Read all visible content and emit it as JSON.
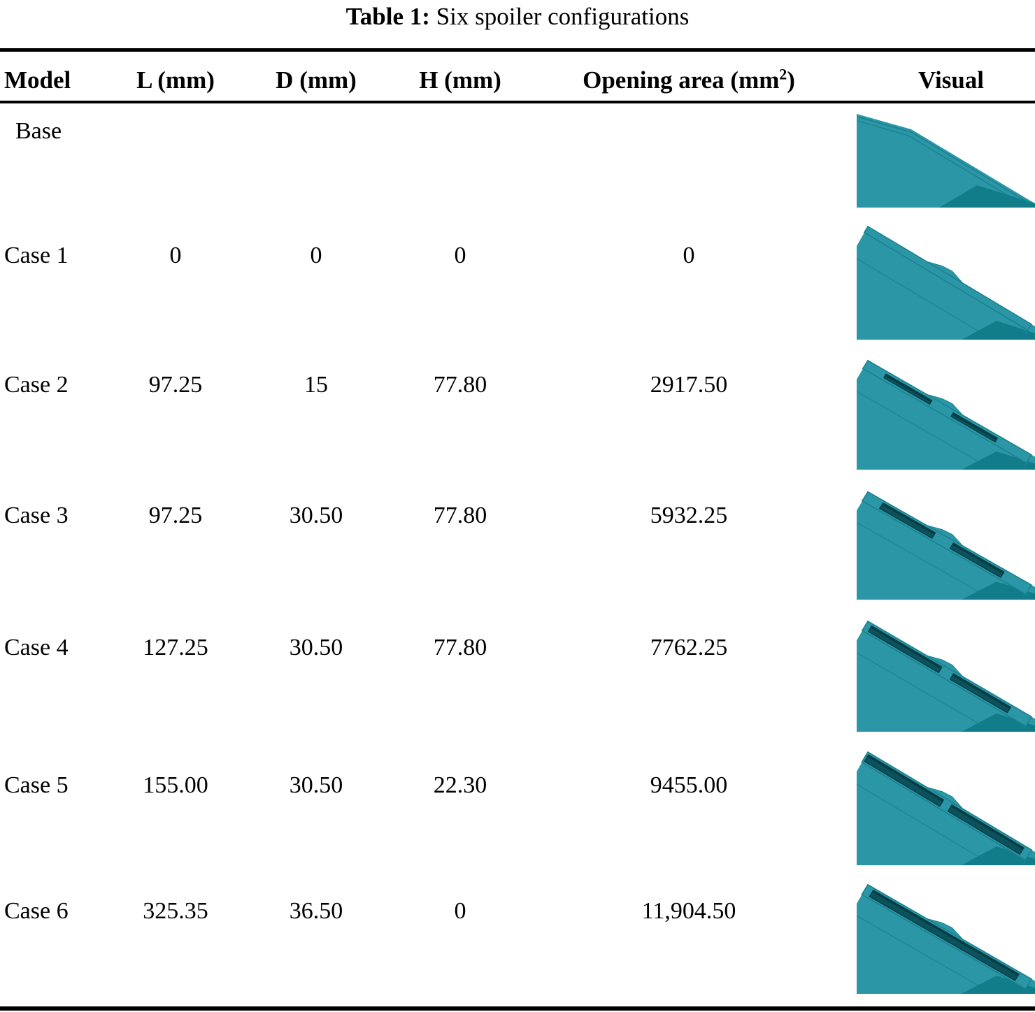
{
  "title": {
    "label": "Table 1:",
    "caption": "Six spoiler configurations"
  },
  "header": {
    "model": "Model",
    "l": "L (mm)",
    "d": "D (mm)",
    "h": "H (mm)",
    "opening_pre": "Opening area (mm",
    "opening_sup": "2",
    "opening_post": ")",
    "visual": "Visual"
  },
  "rows": [
    {
      "model": "Base",
      "l": "",
      "d": "",
      "h": "",
      "area": "",
      "visual": "base",
      "visual_desc": "plain trunk lid corner, no spoiler opening"
    },
    {
      "model": "Case 1",
      "l": "0",
      "d": "0",
      "h": "0",
      "area": "0",
      "visual": "case1",
      "visual_desc": "closed spoiler strip, no slots"
    },
    {
      "model": "Case 2",
      "l": "97.25",
      "d": "15",
      "h": "77.80",
      "area": "2917.50",
      "visual": "case2",
      "visual_desc": "two short narrow slots"
    },
    {
      "model": "Case 3",
      "l": "97.25",
      "d": "30.50",
      "h": "77.80",
      "area": "5932.25",
      "visual": "case3",
      "visual_desc": "two short wide slots"
    },
    {
      "model": "Case 4",
      "l": "127.25",
      "d": "30.50",
      "h": "77.80",
      "area": "7762.25",
      "visual": "case4",
      "visual_desc": "two medium wide slots"
    },
    {
      "model": "Case 5",
      "l": "155.00",
      "d": "30.50",
      "h": "22.30",
      "area": "9455.00",
      "visual": "case5",
      "visual_desc": "two long wide slots with small bridge"
    },
    {
      "model": "Case 6",
      "l": "325.35",
      "d": "36.50",
      "h": "0",
      "area": "11,904.50",
      "visual": "case6",
      "visual_desc": "one continuous long slot"
    }
  ],
  "colors": {
    "model_face": "#2B96A6",
    "model_side_dark": "#117C8A",
    "model_edge_line": "#1B8290",
    "model_slot": "#0B525C",
    "model_slot_shadow": "#063940",
    "rule": "#000000",
    "text": "#000000"
  }
}
